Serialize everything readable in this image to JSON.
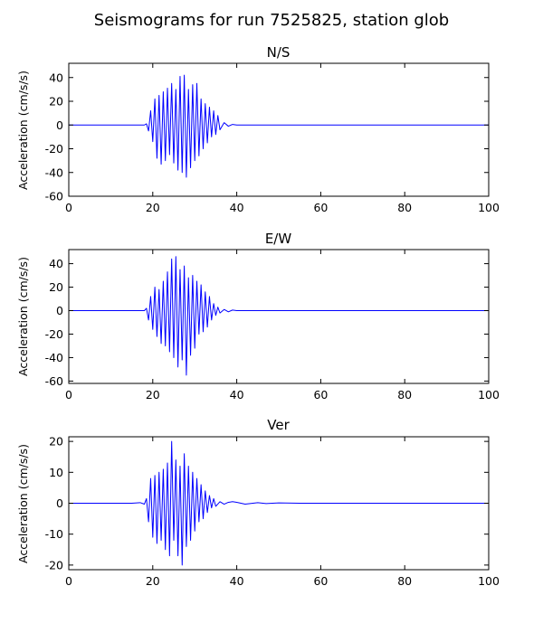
{
  "figure": {
    "suptitle": "Seismograms for run 7525825, station glob"
  },
  "colors": {
    "trace": "#0000ff",
    "axes": "#000000",
    "background": "#ffffff"
  },
  "chart_data": [
    {
      "type": "line",
      "title": "N/S",
      "xlabel": "",
      "ylabel": "Acceleration (cm/s/s)",
      "xlim": [
        0,
        100
      ],
      "ylim": [
        -60,
        52
      ],
      "xticks": [
        0,
        20,
        40,
        60,
        80,
        100
      ],
      "yticks": [
        -60,
        -40,
        -20,
        0,
        20,
        40
      ],
      "grid": false,
      "series": [
        {
          "x": [
            0,
            5,
            10,
            15,
            18,
            18.5,
            19,
            19.5,
            20,
            20.5,
            21,
            21.5,
            22,
            22.5,
            23,
            23.5,
            24,
            24.5,
            25,
            25.5,
            26,
            26.5,
            27,
            27.5,
            28,
            28.5,
            29,
            29.5,
            30,
            30.5,
            31,
            31.5,
            32,
            32.5,
            33,
            33.5,
            34,
            34.5,
            35,
            35.5,
            36,
            37,
            38,
            39,
            40,
            45,
            50,
            60,
            70,
            80,
            90,
            100
          ],
          "y": [
            0,
            0,
            0,
            0,
            0,
            1,
            -5,
            12,
            -14,
            22,
            -28,
            25,
            -33,
            28,
            -30,
            31,
            -25,
            35,
            -32,
            30,
            -38,
            41,
            -40,
            42,
            -44,
            30,
            -36,
            34,
            -30,
            35,
            -26,
            22,
            -20,
            18,
            -15,
            15,
            -10,
            12,
            -8,
            8,
            -4,
            2,
            -1,
            0.5,
            0,
            0,
            0,
            0,
            0,
            0,
            0,
            0
          ]
        }
      ]
    },
    {
      "type": "line",
      "title": "E/W",
      "xlabel": "",
      "ylabel": "Acceleration (cm/s/s)",
      "xlim": [
        0,
        100
      ],
      "ylim": [
        -62,
        52
      ],
      "xticks": [
        0,
        20,
        40,
        60,
        80,
        100
      ],
      "yticks": [
        -60,
        -40,
        -20,
        0,
        20,
        40
      ],
      "grid": false,
      "series": [
        {
          "x": [
            0,
            5,
            10,
            15,
            18,
            18.5,
            19,
            19.5,
            20,
            20.5,
            21,
            21.5,
            22,
            22.5,
            23,
            23.5,
            24,
            24.5,
            25,
            25.5,
            26,
            26.5,
            27,
            27.5,
            28,
            28.5,
            29,
            29.5,
            30,
            30.5,
            31,
            31.5,
            32,
            32.5,
            33,
            33.5,
            34,
            34.5,
            35,
            35.5,
            36,
            37,
            38,
            39,
            40,
            45,
            50,
            60,
            70,
            80,
            90,
            100
          ],
          "y": [
            0,
            0,
            0,
            0,
            0,
            2,
            -8,
            12,
            -16,
            20,
            -22,
            18,
            -28,
            25,
            -30,
            33,
            -35,
            44,
            -40,
            46,
            -48,
            35,
            -42,
            38,
            -55,
            28,
            -38,
            30,
            -32,
            25,
            -20,
            22,
            -18,
            16,
            -14,
            12,
            -8,
            6,
            -4,
            3,
            -2,
            1,
            -1,
            0.5,
            0,
            0,
            0,
            0,
            0,
            0,
            0,
            0
          ]
        }
      ]
    },
    {
      "type": "line",
      "title": "Ver",
      "xlabel": "",
      "ylabel": "Acceleration (cm/s/s)",
      "xlim": [
        0,
        100
      ],
      "ylim": [
        -21.5,
        21.5
      ],
      "xticks": [
        0,
        20,
        40,
        60,
        80,
        100
      ],
      "yticks": [
        -20,
        -10,
        0,
        10,
        20
      ],
      "grid": false,
      "series": [
        {
          "x": [
            0,
            5,
            10,
            15,
            17,
            18,
            18.5,
            19,
            19.5,
            20,
            20.5,
            21,
            21.5,
            22,
            22.5,
            23,
            23.5,
            24,
            24.5,
            25,
            25.5,
            26,
            26.5,
            27,
            27.5,
            28,
            28.5,
            29,
            29.5,
            30,
            30.5,
            31,
            31.5,
            32,
            32.5,
            33,
            33.5,
            34,
            34.5,
            35,
            36,
            37,
            38,
            39,
            40,
            42,
            45,
            47,
            50,
            55,
            60,
            70,
            80,
            90,
            100
          ],
          "y": [
            0,
            0,
            0,
            0,
            0.2,
            -0.3,
            1.5,
            -6,
            8,
            -11,
            9,
            -13,
            10,
            -12,
            11,
            -15,
            13,
            -17,
            20,
            -12,
            14,
            -17,
            12,
            -20,
            16,
            -14,
            12,
            -12,
            10,
            -9,
            8,
            -6,
            6,
            -5,
            4,
            -3,
            2.5,
            -1.5,
            1.5,
            -1,
            0.5,
            -0.3,
            0.3,
            0.5,
            0.3,
            -0.3,
            0.2,
            -0.1,
            0.1,
            0,
            0,
            0,
            0,
            0,
            0
          ]
        }
      ]
    }
  ]
}
